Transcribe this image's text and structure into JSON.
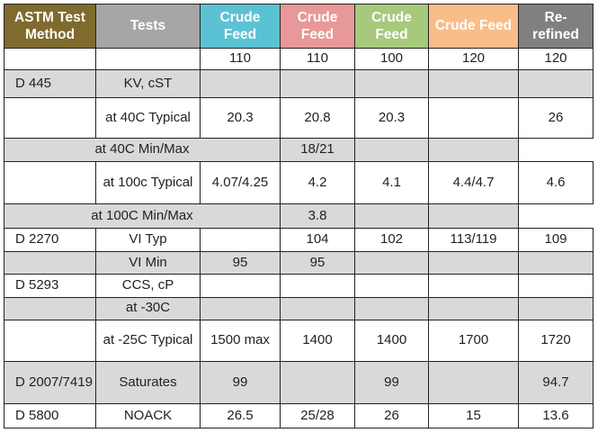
{
  "colors": {
    "method_header": "#7f6b2e",
    "tests_header": "#a6a6a6",
    "crude_blue": "#5bc2d4",
    "crude_red": "#e89898",
    "crude_green": "#a6c97b",
    "crude_orange": "#f9bd8a",
    "rerefined": "#808080",
    "shaded_row": "#d9d9d9"
  },
  "headers": {
    "method": "ASTM Test Method",
    "tests": "Tests",
    "cols": [
      "Crude Feed",
      "Crude Feed",
      "Crude Feed",
      "Crude Feed",
      "Re-refined"
    ]
  },
  "rows": [
    {
      "method": "",
      "test": "",
      "v": [
        "110",
        "110",
        "100",
        "120",
        "120"
      ]
    },
    {
      "method": "D 445",
      "test": "KV, cST",
      "v": [
        "",
        "",
        "",
        "",
        ""
      ]
    },
    {
      "method": "",
      "test": "at 40C Typical",
      "v": [
        "20.3",
        "20.8",
        "20.3",
        "",
        "26"
      ]
    },
    {
      "span": "at 40C Min/Max",
      "v": [
        "18/21",
        "",
        ""
      ]
    },
    {
      "method": "",
      "test": "at 100c Typical",
      "v": [
        "4.07/4.25",
        "4.2",
        "4.1",
        "4.4/4.7",
        "4.6"
      ]
    },
    {
      "span": "at 100C Min/Max",
      "v": [
        "3.8",
        "",
        ""
      ]
    },
    {
      "method": "D 2270",
      "test": "VI Typ",
      "v": [
        "",
        "104",
        "102",
        "113/119",
        "109"
      ]
    },
    {
      "method": "",
      "test": "VI Min",
      "v": [
        "95",
        "95",
        "",
        "",
        ""
      ]
    },
    {
      "method": "D 5293",
      "test": "CCS, cP",
      "v": [
        "",
        "",
        "",
        "",
        ""
      ]
    },
    {
      "method": "",
      "test": "at -30C",
      "v": [
        "",
        "",
        "",
        "",
        ""
      ]
    },
    {
      "method": "",
      "test": "at -25C Typical",
      "v": [
        "1500 max",
        "1400",
        "1400",
        "1700",
        "1720"
      ]
    },
    {
      "method": "D 2007/7419",
      "test": "Saturates",
      "v": [
        "99",
        "",
        "99",
        "",
        "94.7"
      ]
    },
    {
      "method": "D 5800",
      "test": "NOACK",
      "v": [
        "26.5",
        "25/28",
        "26",
        "15",
        "13.6"
      ]
    }
  ]
}
